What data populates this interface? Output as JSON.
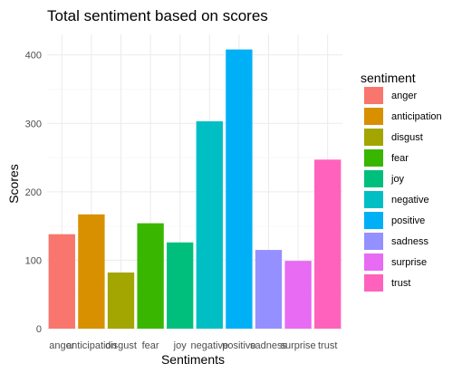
{
  "chart_data": {
    "type": "bar",
    "title": "Total sentiment based on scores",
    "xlabel": "Sentiments",
    "ylabel": "Scores",
    "categories": [
      "anger",
      "anticipation",
      "disgust",
      "fear",
      "joy",
      "negative",
      "positive",
      "sadness",
      "surprise",
      "trust"
    ],
    "values": [
      138,
      167,
      82,
      154,
      126,
      303,
      408,
      115,
      99,
      247
    ],
    "colors": [
      "#F8766D",
      "#D89000",
      "#A3A500",
      "#39B600",
      "#00BF7D",
      "#00BFC4",
      "#00B0F6",
      "#9590FF",
      "#E76BF3",
      "#FF62BC"
    ],
    "ylim": [
      0,
      430
    ],
    "yticks": [
      0,
      100,
      200,
      300,
      400
    ],
    "grid": true,
    "legend": {
      "title": "sentiment",
      "placement": "right",
      "entries": [
        "anger",
        "anticipation",
        "disgust",
        "fear",
        "joy",
        "negative",
        "positive",
        "sadness",
        "surprise",
        "trust"
      ]
    }
  }
}
